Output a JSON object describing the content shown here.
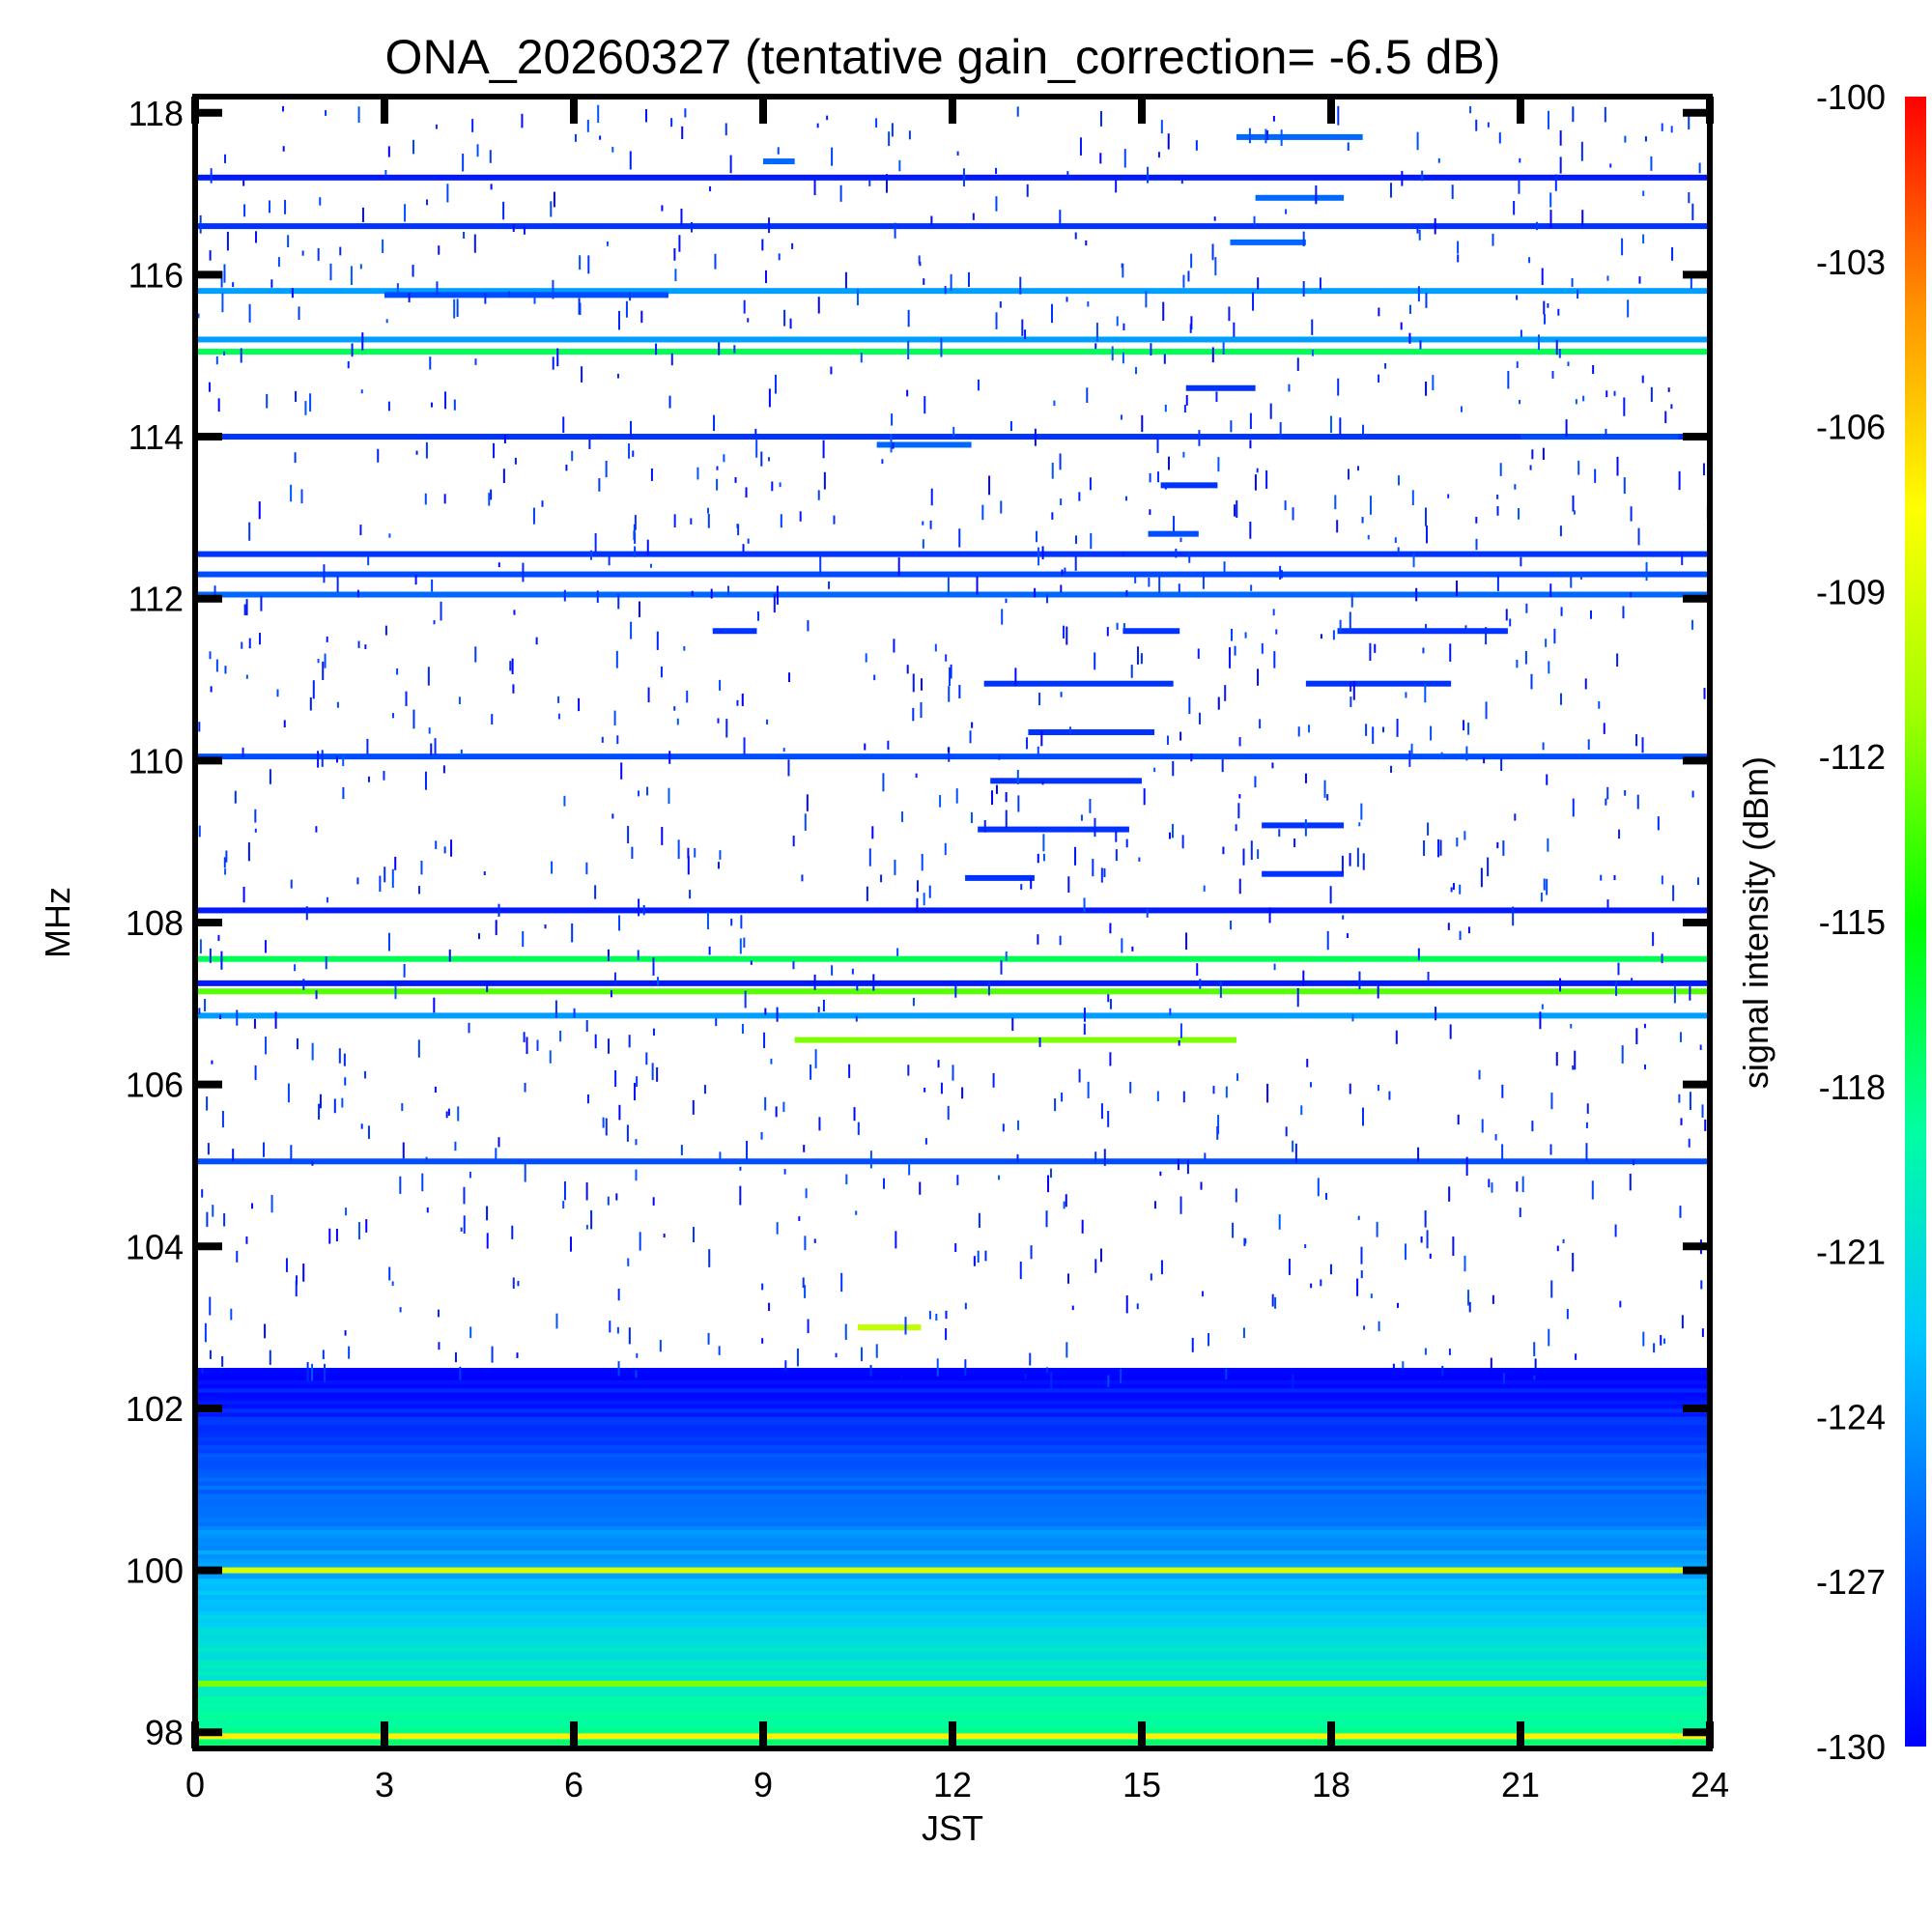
{
  "chart_data": {
    "type": "heatmap",
    "title": "ONA_20260327 (tentative gain_correction= -6.5 dB)",
    "xlabel": "JST",
    "ylabel": "MHz",
    "colorbar_label": "signal intensity (dBm)",
    "xlim": [
      0,
      24
    ],
    "ylim": [
      97.8,
      118.2
    ],
    "clim": [
      -130,
      -100
    ],
    "x_ticks": [
      "0",
      "3",
      "6",
      "9",
      "12",
      "15",
      "18",
      "21",
      "24"
    ],
    "x_tick_values": [
      0,
      3,
      6,
      9,
      12,
      15,
      18,
      21,
      24
    ],
    "y_ticks": [
      "98",
      "100",
      "102",
      "104",
      "106",
      "108",
      "110",
      "112",
      "114",
      "116",
      "118"
    ],
    "y_tick_values": [
      98,
      100,
      102,
      104,
      106,
      108,
      110,
      112,
      114,
      116,
      118
    ],
    "colorbar_ticks": [
      "-100",
      "-103",
      "-106",
      "-109",
      "-112",
      "-115",
      "-118",
      "-121",
      "-124",
      "-127",
      "-130"
    ],
    "colorbar_tick_values": [
      -100,
      -103,
      -106,
      -109,
      -112,
      -115,
      -118,
      -121,
      -124,
      -127,
      -130
    ],
    "colormap": [
      "#0000ff",
      "#0060ff",
      "#00c8ff",
      "#00ffa0",
      "#00ff00",
      "#a0ff00",
      "#ffff00",
      "#ff9000",
      "#ff0000"
    ],
    "noise_floor_band": {
      "freq_range": [
        97.8,
        102.5
      ],
      "level_low": -118,
      "level_high": -130
    },
    "continuous_bands": [
      {
        "freq": 117.2,
        "level": -129,
        "t_start": 0,
        "t_end": 24
      },
      {
        "freq": 116.6,
        "level": -128,
        "t_start": 0,
        "t_end": 24
      },
      {
        "freq": 115.8,
        "level": -124,
        "t_start": 0,
        "t_end": 24
      },
      {
        "freq": 115.2,
        "level": -124,
        "t_start": 0,
        "t_end": 24
      },
      {
        "freq": 115.05,
        "level": -117,
        "t_start": 0,
        "t_end": 24
      },
      {
        "freq": 114.0,
        "level": -128,
        "t_start": 0,
        "t_end": 24
      },
      {
        "freq": 112.55,
        "level": -128,
        "t_start": 0,
        "t_end": 24
      },
      {
        "freq": 112.3,
        "level": -127,
        "t_start": 0,
        "t_end": 24
      },
      {
        "freq": 112.05,
        "level": -126,
        "t_start": 0,
        "t_end": 24
      },
      {
        "freq": 110.05,
        "level": -127,
        "t_start": 0,
        "t_end": 24
      },
      {
        "freq": 108.15,
        "level": -129,
        "t_start": 0,
        "t_end": 24
      },
      {
        "freq": 107.55,
        "level": -117,
        "t_start": 0,
        "t_end": 24
      },
      {
        "freq": 107.25,
        "level": -129,
        "t_start": 0,
        "t_end": 24
      },
      {
        "freq": 107.15,
        "level": -113,
        "t_start": 0,
        "t_end": 24
      },
      {
        "freq": 106.85,
        "level": -124,
        "t_start": 0,
        "t_end": 24
      },
      {
        "freq": 105.05,
        "level": -127,
        "t_start": 0,
        "t_end": 24
      },
      {
        "freq": 100.0,
        "level": -109,
        "t_start": 0,
        "t_end": 24
      },
      {
        "freq": 98.6,
        "level": -112,
        "t_start": 0,
        "t_end": 24
      },
      {
        "freq": 97.95,
        "level": -107,
        "t_start": 0,
        "t_end": 24
      }
    ],
    "intermittent_signals": [
      {
        "freq": 117.7,
        "level": -126,
        "t_start": 16.5,
        "t_end": 18.5
      },
      {
        "freq": 117.4,
        "level": -126,
        "t_start": 9.0,
        "t_end": 9.5
      },
      {
        "freq": 116.95,
        "level": -126,
        "t_start": 16.8,
        "t_end": 18.2
      },
      {
        "freq": 116.4,
        "level": -126,
        "t_start": 16.4,
        "t_end": 17.6
      },
      {
        "freq": 115.75,
        "level": -127,
        "t_start": 3.0,
        "t_end": 7.5
      },
      {
        "freq": 114.6,
        "level": -128,
        "t_start": 15.7,
        "t_end": 16.8
      },
      {
        "freq": 113.9,
        "level": -126,
        "t_start": 10.8,
        "t_end": 12.3
      },
      {
        "freq": 114.0,
        "level": -127,
        "t_start": 21.0,
        "t_end": 23.5
      },
      {
        "freq": 113.4,
        "level": -128,
        "t_start": 15.3,
        "t_end": 16.2
      },
      {
        "freq": 112.8,
        "level": -127,
        "t_start": 15.1,
        "t_end": 15.9
      },
      {
        "freq": 111.6,
        "level": -128,
        "t_start": 18.1,
        "t_end": 20.8
      },
      {
        "freq": 111.6,
        "level": -128,
        "t_start": 8.2,
        "t_end": 8.9
      },
      {
        "freq": 111.6,
        "level": -128,
        "t_start": 14.7,
        "t_end": 15.6
      },
      {
        "freq": 110.95,
        "level": -128,
        "t_start": 17.6,
        "t_end": 19.9
      },
      {
        "freq": 110.95,
        "level": -128,
        "t_start": 12.5,
        "t_end": 15.5
      },
      {
        "freq": 110.35,
        "level": -128,
        "t_start": 13.2,
        "t_end": 15.2
      },
      {
        "freq": 109.75,
        "level": -128,
        "t_start": 12.6,
        "t_end": 15.0
      },
      {
        "freq": 109.15,
        "level": -128,
        "t_start": 12.4,
        "t_end": 14.8
      },
      {
        "freq": 109.2,
        "level": -128,
        "t_start": 16.9,
        "t_end": 18.2
      },
      {
        "freq": 108.6,
        "level": -128,
        "t_start": 16.9,
        "t_end": 18.2
      },
      {
        "freq": 108.55,
        "level": -128,
        "t_start": 12.2,
        "t_end": 13.3
      },
      {
        "freq": 106.55,
        "level": -112,
        "t_start": 9.5,
        "t_end": 16.5
      },
      {
        "freq": 103.0,
        "level": -110,
        "t_start": 10.5,
        "t_end": 11.5
      }
    ]
  }
}
